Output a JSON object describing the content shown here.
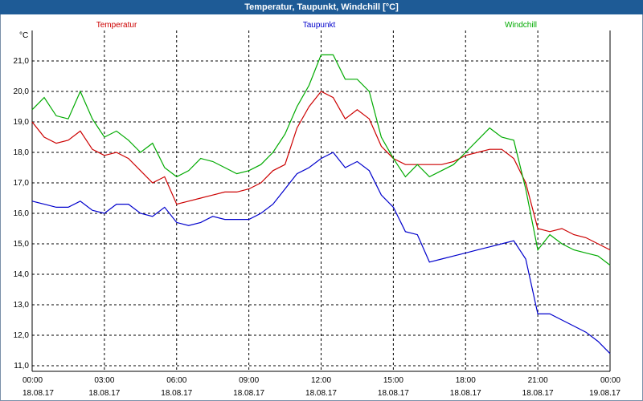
{
  "window": {
    "title": "Temperatur, Taupunkt, Windchill [°C]"
  },
  "chart_data": {
    "type": "line",
    "title": "Temperatur, Taupunkt, Windchill [°C]",
    "ylabel": "°C",
    "ylim": [
      11.0,
      21.0
    ],
    "y_ticks": [
      "21,0",
      "20,0",
      "19,0",
      "18,0",
      "17,0",
      "16,0",
      "15,0",
      "14,0",
      "13,0",
      "12,0",
      "11,0"
    ],
    "x_ticks": [
      {
        "time": "00:00",
        "date": "18.08.17"
      },
      {
        "time": "03:00",
        "date": "18.08.17"
      },
      {
        "time": "06:00",
        "date": "18.08.17"
      },
      {
        "time": "09:00",
        "date": "18.08.17"
      },
      {
        "time": "12:00",
        "date": "18.08.17"
      },
      {
        "time": "15:00",
        "date": "18.08.17"
      },
      {
        "time": "18:00",
        "date": "18.08.17"
      },
      {
        "time": "21:00",
        "date": "18.08.17"
      },
      {
        "time": "00:00",
        "date": "19.08.17"
      }
    ],
    "grid": true,
    "x_hours": [
      0,
      0.5,
      1,
      1.5,
      2,
      2.5,
      3,
      3.5,
      4,
      4.5,
      5,
      5.5,
      6,
      6.5,
      7,
      7.5,
      8,
      8.5,
      9,
      9.5,
      10,
      10.5,
      11,
      11.5,
      12,
      12.5,
      13,
      13.5,
      14,
      14.5,
      15,
      15.5,
      16,
      16.5,
      17,
      17.5,
      18,
      18.5,
      19,
      19.5,
      20,
      20.5,
      21,
      21.5,
      22,
      22.5,
      23,
      23.5,
      24
    ],
    "series": [
      {
        "name": "Temperatur",
        "color": "#cc0000",
        "values": [
          19.0,
          18.5,
          18.3,
          18.4,
          18.7,
          18.1,
          17.9,
          18.0,
          17.8,
          17.4,
          17.0,
          17.2,
          16.3,
          16.4,
          16.5,
          16.6,
          16.7,
          16.7,
          16.8,
          17.0,
          17.4,
          17.6,
          18.8,
          19.5,
          20.0,
          19.8,
          19.1,
          19.4,
          19.1,
          18.2,
          17.8,
          17.6,
          17.6,
          17.6,
          17.6,
          17.7,
          17.9,
          18.0,
          18.1,
          18.1,
          17.8,
          17.0,
          15.5,
          15.4,
          15.5,
          15.3,
          15.2,
          15.0,
          14.8
        ]
      },
      {
        "name": "Taupunkt",
        "color": "#0000cc",
        "values": [
          16.4,
          16.3,
          16.2,
          16.2,
          16.4,
          16.1,
          16.0,
          16.3,
          16.3,
          16.0,
          15.9,
          16.2,
          15.7,
          15.6,
          15.7,
          15.9,
          15.8,
          15.8,
          15.8,
          16.0,
          16.3,
          16.8,
          17.3,
          17.5,
          17.8,
          18.0,
          17.5,
          17.7,
          17.4,
          16.6,
          16.2,
          15.4,
          15.3,
          14.4,
          14.5,
          14.6,
          14.7,
          14.8,
          14.9,
          15.0,
          15.1,
          14.5,
          12.7,
          12.7,
          12.5,
          12.3,
          12.1,
          11.8,
          11.4
        ]
      },
      {
        "name": "Windchill",
        "color": "#00aa00",
        "values": [
          19.4,
          19.8,
          19.2,
          19.1,
          20.0,
          19.1,
          18.5,
          18.7,
          18.4,
          18.0,
          18.3,
          17.5,
          17.2,
          17.4,
          17.8,
          17.7,
          17.5,
          17.3,
          17.4,
          17.6,
          18.0,
          18.6,
          19.5,
          20.2,
          21.2,
          21.2,
          20.4,
          20.4,
          20.0,
          18.5,
          17.8,
          17.2,
          17.6,
          17.2,
          17.4,
          17.6,
          18.0,
          18.4,
          18.8,
          18.5,
          18.4,
          16.8,
          14.8,
          15.3,
          15.0,
          14.8,
          14.7,
          14.6,
          14.3
        ]
      }
    ]
  }
}
